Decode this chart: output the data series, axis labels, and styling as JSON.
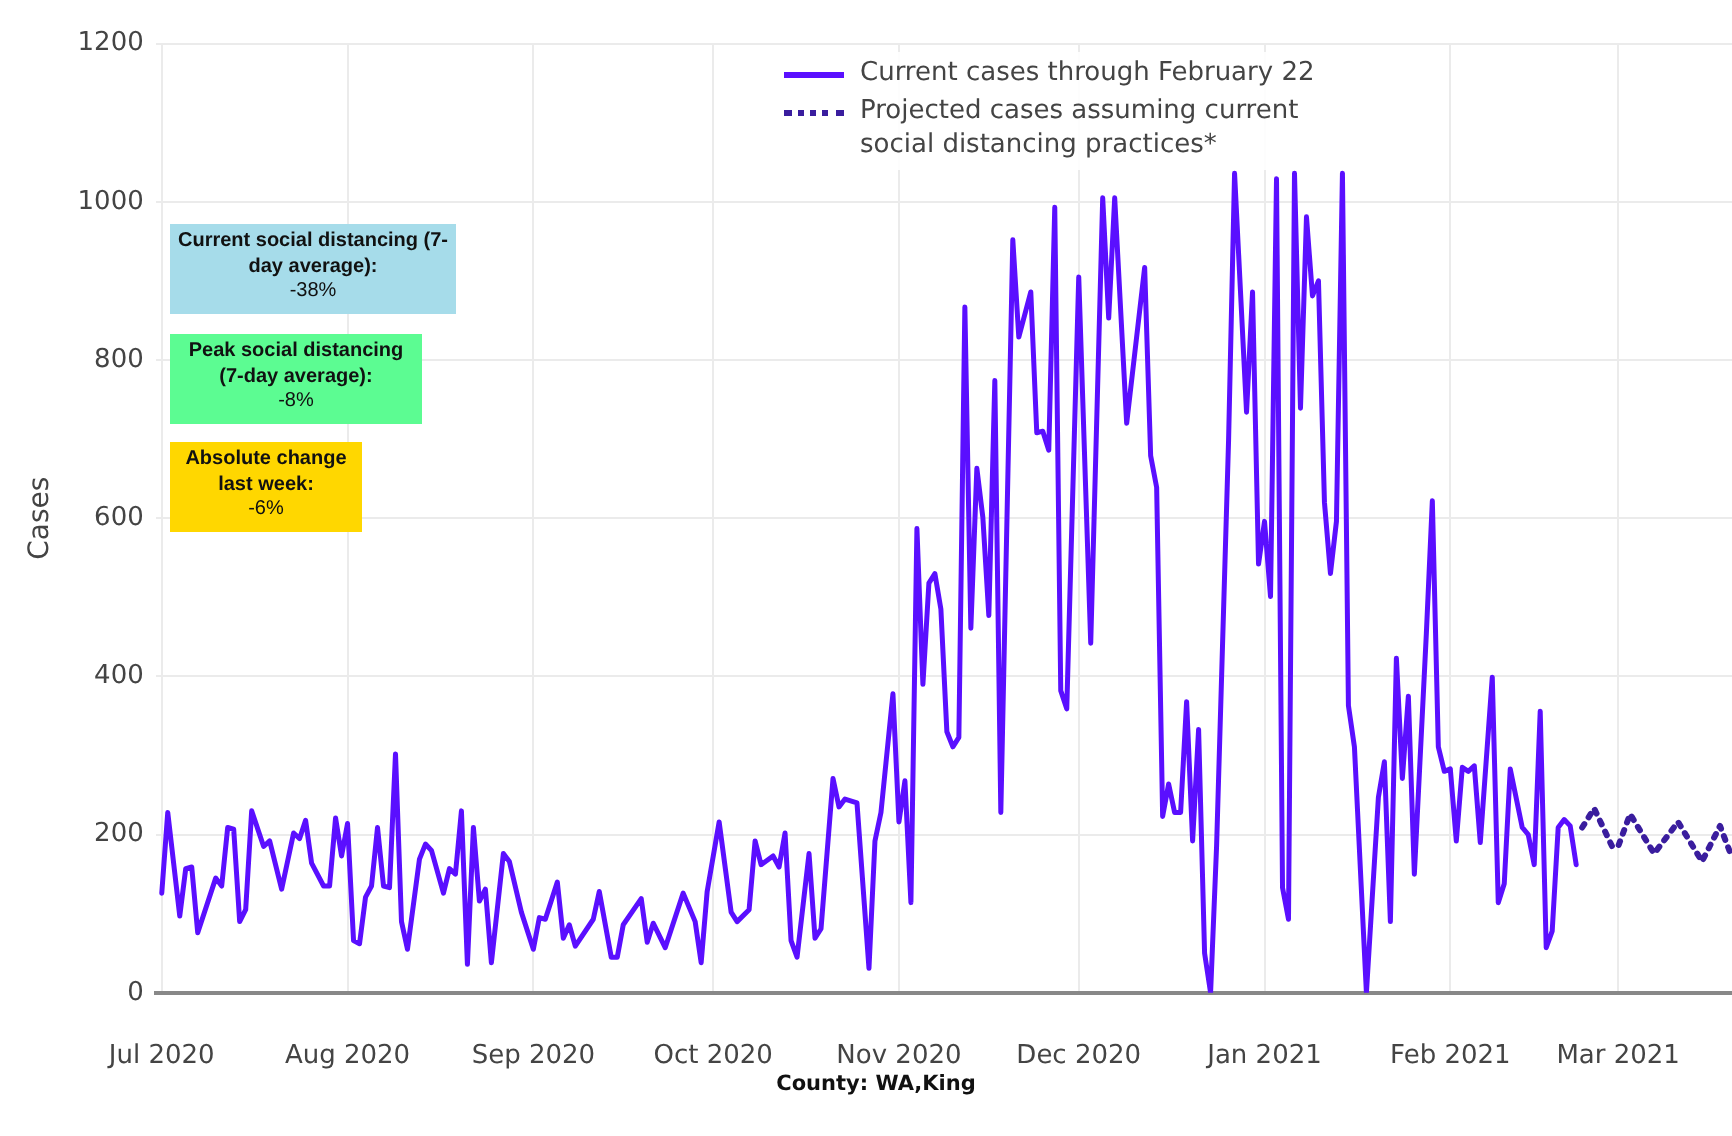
{
  "chart_data": {
    "type": "line",
    "ylabel": "Cases",
    "ylim": [
      0,
      1200
    ],
    "yticks": [
      0,
      200,
      400,
      600,
      800,
      1000,
      1200
    ],
    "xlim": [
      "2020-06-30",
      "2021-03-20"
    ],
    "xticks": [
      {
        "value": "2020-07-01",
        "label": "Jul 2020"
      },
      {
        "value": "2020-08-01",
        "label": "Aug 2020"
      },
      {
        "value": "2020-09-01",
        "label": "Sep 2020"
      },
      {
        "value": "2020-10-01",
        "label": "Oct 2020"
      },
      {
        "value": "2020-11-01",
        "label": "Nov 2020"
      },
      {
        "value": "2020-12-01",
        "label": "Dec 2020"
      },
      {
        "value": "2021-01-01",
        "label": "Jan 2021"
      },
      {
        "value": "2021-02-01",
        "label": "Feb 2021"
      },
      {
        "value": "2021-03-01",
        "label": "Mar 2021"
      }
    ],
    "grid": true,
    "legend": "top",
    "annotations": [
      "Current social distancing (7-day average):",
      "-38%",
      "Peak social distancing (7-day average):",
      "-8%",
      "Absolute change last week:",
      "-6%",
      "County: WA,King"
    ],
    "series": [
      {
        "name": "Current cases through February 22",
        "color": "#5a0fff",
        "line_style": "solid",
        "x": [
          "2020-07-01",
          "2020-07-02",
          "2020-07-04",
          "2020-07-05",
          "2020-07-06",
          "2020-07-07",
          "2020-07-10",
          "2020-07-11",
          "2020-07-12",
          "2020-07-13",
          "2020-07-14",
          "2020-07-15",
          "2020-07-16",
          "2020-07-18",
          "2020-07-19",
          "2020-07-21",
          "2020-07-23",
          "2020-07-24",
          "2020-07-25",
          "2020-07-26",
          "2020-07-28",
          "2020-07-29",
          "2020-07-30",
          "2020-07-31",
          "2020-08-01",
          "2020-08-02",
          "2020-08-03",
          "2020-08-04",
          "2020-08-05",
          "2020-08-06",
          "2020-08-07",
          "2020-08-08",
          "2020-08-09",
          "2020-08-10",
          "2020-08-11",
          "2020-08-13",
          "2020-08-14",
          "2020-08-15",
          "2020-08-17",
          "2020-08-18",
          "2020-08-19",
          "2020-08-20",
          "2020-08-21",
          "2020-08-22",
          "2020-08-23",
          "2020-08-24",
          "2020-08-25",
          "2020-08-27",
          "2020-08-28",
          "2020-08-30",
          "2020-09-01",
          "2020-09-02",
          "2020-09-03",
          "2020-09-05",
          "2020-09-06",
          "2020-09-07",
          "2020-09-08",
          "2020-09-11",
          "2020-09-12",
          "2020-09-14",
          "2020-09-15",
          "2020-09-16",
          "2020-09-19",
          "2020-09-20",
          "2020-09-21",
          "2020-09-23",
          "2020-09-26",
          "2020-09-28",
          "2020-09-29",
          "2020-09-30",
          "2020-10-02",
          "2020-10-04",
          "2020-10-05",
          "2020-10-07",
          "2020-10-08",
          "2020-10-09",
          "2020-10-11",
          "2020-10-12",
          "2020-10-13",
          "2020-10-14",
          "2020-10-15",
          "2020-10-17",
          "2020-10-18",
          "2020-10-19",
          "2020-10-21",
          "2020-10-22",
          "2020-10-23",
          "2020-10-25",
          "2020-10-27",
          "2020-10-28",
          "2020-10-29",
          "2020-10-31",
          "2020-11-01",
          "2020-11-02",
          "2020-11-03",
          "2020-11-04",
          "2020-11-05",
          "2020-11-06",
          "2020-11-07",
          "2020-11-08",
          "2020-11-09",
          "2020-11-10",
          "2020-11-11",
          "2020-11-12",
          "2020-11-13",
          "2020-11-14",
          "2020-11-15",
          "2020-11-16",
          "2020-11-17",
          "2020-11-18",
          "2020-11-20",
          "2020-11-21",
          "2020-11-23",
          "2020-11-24",
          "2020-11-25",
          "2020-11-26",
          "2020-11-27",
          "2020-11-28",
          "2020-11-29",
          "2020-12-01",
          "2020-12-03",
          "2020-12-05",
          "2020-12-06",
          "2020-12-07",
          "2020-12-09",
          "2020-12-12",
          "2020-12-13",
          "2020-12-14",
          "2020-12-15",
          "2020-12-16",
          "2020-12-17",
          "2020-12-18",
          "2020-12-19",
          "2020-12-20",
          "2020-12-21",
          "2020-12-22",
          "2020-12-23",
          "2020-12-24",
          "2020-12-26",
          "2020-12-27",
          "2020-12-29",
          "2020-12-30",
          "2020-12-31",
          "2021-01-01",
          "2021-01-02",
          "2021-01-03",
          "2021-01-04",
          "2021-01-05",
          "2021-01-06",
          "2021-01-07",
          "2021-01-08",
          "2021-01-09",
          "2021-01-10",
          "2021-01-11",
          "2021-01-12",
          "2021-01-13",
          "2021-01-14",
          "2021-01-15",
          "2021-01-16",
          "2021-01-18",
          "2021-01-20",
          "2021-01-21",
          "2021-01-22",
          "2021-01-23",
          "2021-01-24",
          "2021-01-25",
          "2021-01-26",
          "2021-01-28",
          "2021-01-29",
          "2021-01-30",
          "2021-01-31",
          "2021-02-01",
          "2021-02-02",
          "2021-02-03",
          "2021-02-04",
          "2021-02-05",
          "2021-02-06",
          "2021-02-08",
          "2021-02-09",
          "2021-02-10",
          "2021-02-11",
          "2021-02-13",
          "2021-02-14",
          "2021-02-15",
          "2021-02-16",
          "2021-02-17",
          "2021-02-18",
          "2021-02-19",
          "2021-02-20",
          "2021-02-21",
          "2021-02-22"
        ],
        "values": [
          126,
          228,
          97,
          157,
          159,
          76,
          145,
          135,
          209,
          207,
          90,
          105,
          230,
          185,
          192,
          131,
          202,
          195,
          218,
          164,
          135,
          135,
          221,
          173,
          214,
          66,
          62,
          121,
          135,
          209,
          135,
          133,
          302,
          90,
          55,
          169,
          188,
          180,
          126,
          157,
          150,
          230,
          36,
          209,
          116,
          131,
          38,
          176,
          166,
          102,
          55,
          95,
          93,
          140,
          69,
          86,
          59,
          93,
          128,
          45,
          45,
          86,
          119,
          64,
          88,
          57,
          126,
          90,
          38,
          128,
          216,
          102,
          90,
          105,
          192,
          162,
          173,
          159,
          202,
          66,
          45,
          176,
          69,
          81,
          271,
          235,
          245,
          240,
          31,
          192,
          228,
          378,
          216,
          268,
          114,
          587,
          390,
          518,
          530,
          485,
          330,
          311,
          323,
          867,
          461,
          663,
          601,
          477,
          774,
          228,
          952,
          829,
          886,
          708,
          710,
          686,
          993,
          382,
          359,
          905,
          442,
          1005,
          853,
          1005,
          720,
          917,
          679,
          639,
          223,
          264,
          228,
          228,
          368,
          192,
          333,
          50,
          0,
          185,
          698,
          1036,
          734,
          886,
          542,
          596,
          501,
          1029,
          133,
          93,
          1036,
          739,
          981,
          881,
          900,
          620,
          530,
          596,
          1036,
          363,
          311,
          0,
          247,
          292,
          90,
          423,
          271,
          375,
          150,
          454,
          622,
          311,
          280,
          283,
          192,
          285,
          280,
          287,
          190,
          399,
          114,
          138,
          283,
          209,
          200,
          162,
          356,
          57,
          78,
          209,
          219,
          211,
          162
        ]
      },
      {
        "name": "Projected cases assuming current social distancing practices*",
        "color": "#3a1d9e",
        "line_style": "dotted",
        "x": [
          "2021-02-23",
          "2021-02-25",
          "2021-02-28",
          "2021-03-01",
          "2021-03-03",
          "2021-03-07",
          "2021-03-11",
          "2021-03-15",
          "2021-03-18",
          "2021-03-20"
        ],
        "values": [
          209,
          233,
          185,
          185,
          226,
          176,
          216,
          166,
          211,
          171
        ]
      }
    ]
  }
}
